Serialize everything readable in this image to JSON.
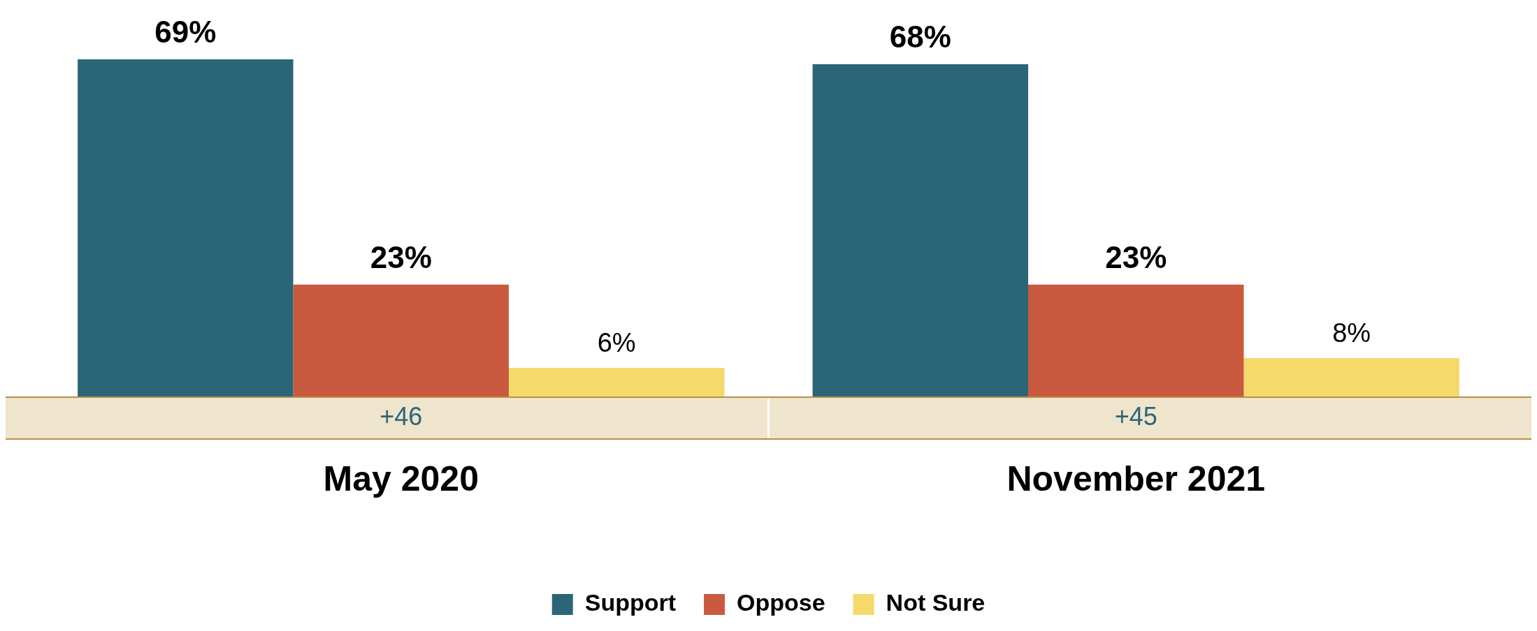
{
  "chart_data": {
    "type": "bar",
    "categories": [
      "May 2020",
      "November 2021"
    ],
    "series": [
      {
        "name": "Support",
        "color": "#2b6678",
        "values": [
          69,
          68
        ],
        "value_labels": [
          "69%",
          "68%"
        ]
      },
      {
        "name": "Oppose",
        "color": "#c95a40",
        "values": [
          23,
          23
        ],
        "value_labels": [
          "23%",
          "23%"
        ]
      },
      {
        "name": "Not Sure",
        "color": "#f5da6b",
        "values": [
          6,
          8
        ],
        "value_labels": [
          "6%",
          "8%"
        ]
      }
    ],
    "annotations": [
      "+46",
      "+45"
    ],
    "legend": "bottom",
    "grid": false
  }
}
